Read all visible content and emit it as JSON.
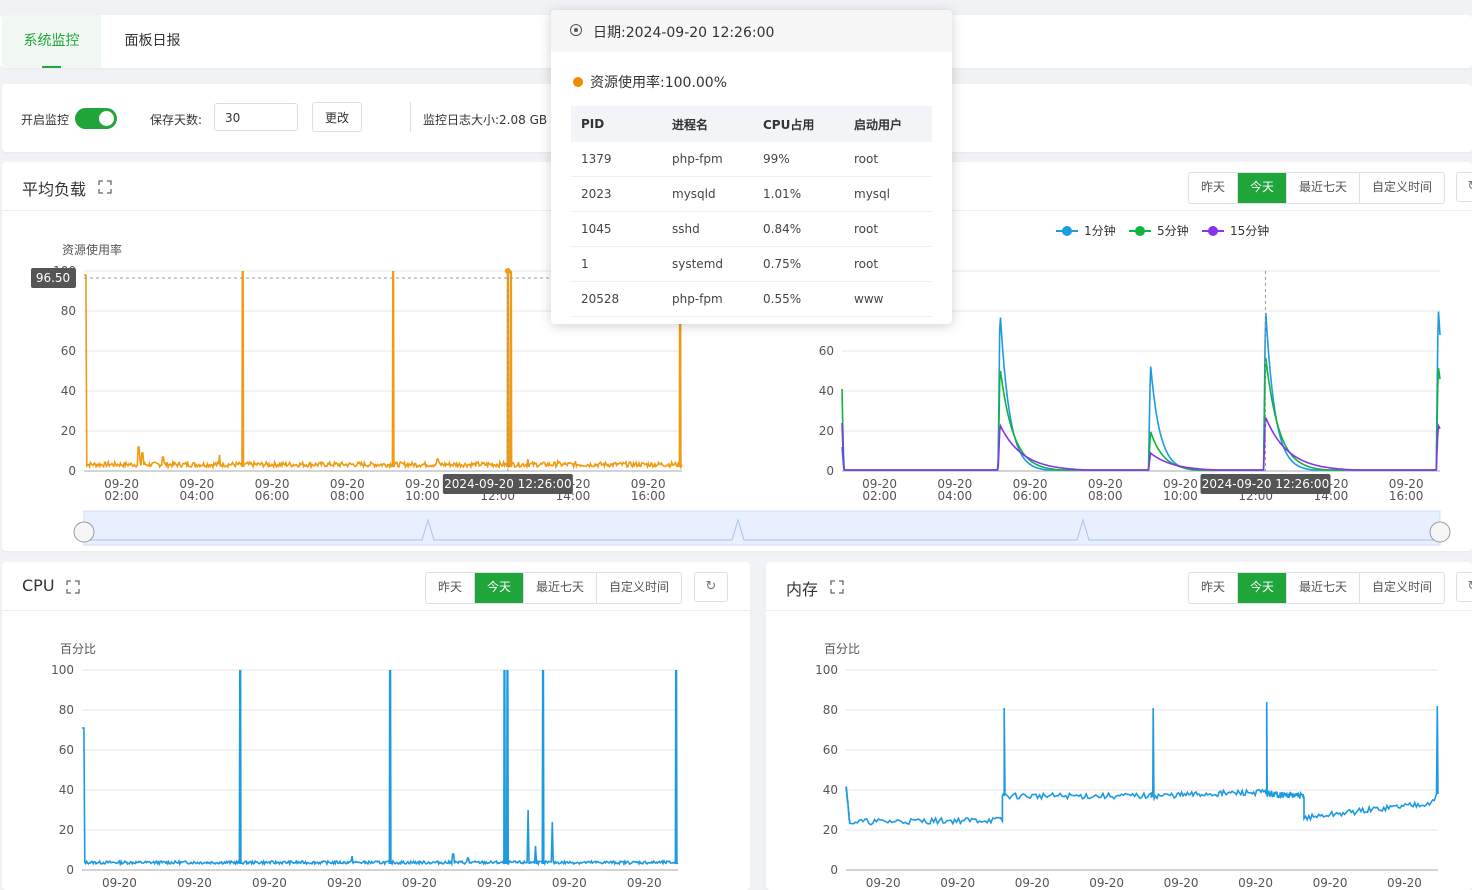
{
  "tabs": [
    {
      "label": "系统监控",
      "active": true
    },
    {
      "label": "面板日报",
      "active": false
    }
  ],
  "settings": {
    "monitor_label": "开启监控",
    "monitor_enabled": true,
    "save_days_label": "保存天数:",
    "save_days_value": "30",
    "change_button": "更改",
    "log_size_label": "监控日志大小:",
    "log_size_value": "2.08 GB"
  },
  "time_ranges": [
    "昨天",
    "今天",
    "最近七天",
    "自定义时间"
  ],
  "active_range": "今天",
  "panels": {
    "load": {
      "title": "平均负载"
    },
    "cpu": {
      "title": "CPU"
    },
    "memory": {
      "title": "内存"
    }
  },
  "tooltip": {
    "date_label": "日期:",
    "date_value": "2024-09-20 12:26:00",
    "usage_label": "资源使用率:",
    "usage_value": "100.00%",
    "columns": [
      "PID",
      "进程名",
      "CPU占用",
      "启动用户"
    ],
    "rows": [
      [
        "1379",
        "php-fpm",
        "99%",
        "root"
      ],
      [
        "2023",
        "mysqld",
        "1.01%",
        "mysql"
      ],
      [
        "1045",
        "sshd",
        "0.84%",
        "root"
      ],
      [
        "1",
        "systemd",
        "0.75%",
        "root"
      ],
      [
        "20528",
        "php-fpm",
        "0.55%",
        "www"
      ]
    ]
  },
  "crosshair_label": "2024-09-20 12:26:00",
  "hover_value_label": "96.50",
  "colors": {
    "accent": "#20a53a",
    "orange": "#ef9b14",
    "blue": "#1e9ae0",
    "green": "#12b33d",
    "purple": "#8833ee"
  },
  "chart_data": [
    {
      "type": "line",
      "name": "load-resource-usage",
      "ylabel": "资源使用率",
      "ylim": [
        0,
        100
      ],
      "yticks": [
        0,
        20,
        40,
        60,
        80,
        100
      ],
      "xlim": [
        1.0,
        16.9
      ],
      "xticks": [
        {
          "x": 2,
          "label": "09-20 02:00"
        },
        {
          "x": 4,
          "label": "09-20 04:00"
        },
        {
          "x": 6,
          "label": "09-20 06:00"
        },
        {
          "x": 8,
          "label": "09-20 08:00"
        },
        {
          "x": 10,
          "label": "09-20 10:00"
        },
        {
          "x": 12,
          "label": "09-20 12:00"
        },
        {
          "x": 14,
          "label": "09-20 14:00"
        },
        {
          "x": 16,
          "label": "09-20 16:00"
        }
      ],
      "series": [
        {
          "color": "#ef9b14",
          "baseline": 2,
          "noise": 2.5,
          "start": 98,
          "spikes": [
            [
              5.22,
              100
            ],
            [
              9.22,
              100
            ],
            [
              12.27,
              100
            ],
            [
              12.35,
              100
            ],
            [
              16.85,
              100
            ]
          ],
          "bumps": [
            [
              2.45,
              12
            ],
            [
              2.55,
              9
            ],
            [
              3.1,
              7
            ],
            [
              4.6,
              8
            ],
            [
              10.4,
              6
            ],
            [
              12.8,
              6
            ],
            [
              13.6,
              5
            ]
          ]
        }
      ],
      "grid": true
    },
    {
      "type": "line",
      "name": "load-average",
      "legend": [
        "1分钟",
        "5分钟",
        "15分钟"
      ],
      "legend_position": "top-center",
      "ylim": [
        0,
        100
      ],
      "yticks": [
        0,
        20,
        40,
        60,
        80,
        100
      ],
      "xlim": [
        1.0,
        16.9
      ],
      "xticks": [
        {
          "x": 2,
          "label": "09-20 02:00"
        },
        {
          "x": 4,
          "label": "09-20 04:00"
        },
        {
          "x": 6,
          "label": "09-20 06:00"
        },
        {
          "x": 8,
          "label": "09-20 08:00"
        },
        {
          "x": 10,
          "label": "09-20 10:00"
        },
        {
          "x": 12,
          "label": "09-20 12:00"
        },
        {
          "x": 14,
          "label": "09-20 14:00"
        },
        {
          "x": 16,
          "label": "09-20 16:00"
        }
      ],
      "series": [
        {
          "name": "1分钟",
          "color": "#1e9ae0",
          "start": 12,
          "peaks": [
            [
              5.2,
              81
            ],
            [
              9.2,
              54
            ],
            [
              12.26,
              82
            ],
            [
              16.85,
              83
            ]
          ],
          "decay": 0.25
        },
        {
          "name": "5分钟",
          "color": "#12b33d",
          "start": 41,
          "peaks": [
            [
              5.2,
              52
            ],
            [
              9.2,
              20
            ],
            [
              12.26,
              58
            ],
            [
              16.85,
              53
            ]
          ],
          "decay": 0.35
        },
        {
          "name": "15分钟",
          "color": "#8833ee",
          "start": 24,
          "peaks": [
            [
              5.2,
              23
            ],
            [
              9.2,
              9
            ],
            [
              12.26,
              27
            ],
            [
              16.85,
              23
            ]
          ],
          "decay": 0.6
        }
      ],
      "grid": true
    },
    {
      "type": "line",
      "name": "cpu",
      "ylabel": "百分比",
      "ylim": [
        0,
        100
      ],
      "yticks": [
        0,
        20,
        40,
        60,
        80,
        100
      ],
      "xlim": [
        1.0,
        16.9
      ],
      "xticks": [
        {
          "x": 2,
          "label": "09-20"
        },
        {
          "x": 4,
          "label": "09-20"
        },
        {
          "x": 6,
          "label": "09-20"
        },
        {
          "x": 8,
          "label": "09-20"
        },
        {
          "x": 10,
          "label": "09-20"
        },
        {
          "x": 12,
          "label": "09-20"
        },
        {
          "x": 14,
          "label": "09-20"
        },
        {
          "x": 16,
          "label": "09-20"
        }
      ],
      "series": [
        {
          "color": "#1e9ae0",
          "baseline": 3,
          "noise": 1.5,
          "start": 71,
          "spikes": [
            [
              5.22,
              100
            ],
            [
              9.22,
              100
            ],
            [
              12.27,
              100
            ],
            [
              12.35,
              100
            ],
            [
              13.3,
              100
            ],
            [
              16.85,
              100
            ]
          ],
          "bumps": [
            [
              12.9,
              30
            ],
            [
              13.1,
              12
            ],
            [
              13.55,
              24
            ],
            [
              8.2,
              7
            ],
            [
              10.9,
              8
            ],
            [
              11.3,
              6
            ]
          ]
        }
      ],
      "grid": true
    },
    {
      "type": "line",
      "name": "memory",
      "ylabel": "百分比",
      "ylim": [
        0,
        100
      ],
      "yticks": [
        0,
        20,
        40,
        60,
        80,
        100
      ],
      "xlim": [
        1.0,
        16.9
      ],
      "xticks": [
        {
          "x": 2,
          "label": "09-20"
        },
        {
          "x": 4,
          "label": "09-20"
        },
        {
          "x": 6,
          "label": "09-20"
        },
        {
          "x": 8,
          "label": "09-20"
        },
        {
          "x": 10,
          "label": "09-20"
        },
        {
          "x": 12,
          "label": "09-20"
        },
        {
          "x": 14,
          "label": "09-20"
        },
        {
          "x": 16,
          "label": "09-20"
        }
      ],
      "series": [
        {
          "color": "#1e9ae0",
          "segments": [
            [
              1.0,
              42,
              1.1,
              24
            ],
            [
              1.1,
              24,
              5.2,
              25
            ],
            [
              5.2,
              37,
              9.2,
              37
            ],
            [
              9.2,
              37,
              12.3,
              39
            ],
            [
              12.3,
              38,
              13.3,
              37
            ],
            [
              13.3,
              26,
              16.8,
              34
            ]
          ],
          "spikes": [
            [
              5.25,
              81
            ],
            [
              9.25,
              81
            ],
            [
              12.3,
              84
            ],
            [
              16.88,
              82
            ]
          ]
        }
      ],
      "grid": true
    }
  ]
}
